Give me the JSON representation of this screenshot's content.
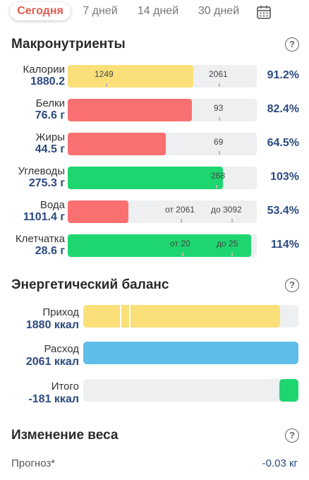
{
  "tabs": [
    {
      "label": "Сегодня",
      "active": true
    },
    {
      "label": "7 дней",
      "active": false
    },
    {
      "label": "14 дней",
      "active": false
    },
    {
      "label": "30 дней",
      "active": false
    }
  ],
  "icons": {
    "calendar": "calendar-icon",
    "help": "help-icon"
  },
  "macros": {
    "title": "Макронутриенты",
    "help": "?",
    "rows": [
      {
        "name": "Калории",
        "value": "1880.2",
        "percent": "91.2%",
        "color": "#fbe07a",
        "fill_fraction": 0.665,
        "marks": [
          "1249",
          "2061"
        ]
      },
      {
        "name": "Белки",
        "value": "76.6 г",
        "percent": "82.4%",
        "color": "#fa7070",
        "fill_fraction": 0.658,
        "marks": [
          "93"
        ]
      },
      {
        "name": "Жиры",
        "value": "44.5 г",
        "percent": "64.5%",
        "color": "#fa7070",
        "fill_fraction": 0.52,
        "marks": [
          "69"
        ]
      },
      {
        "name": "Углеводы",
        "value": "275.3 г",
        "percent": "103%",
        "color": "#1ed66f",
        "fill_fraction": 0.82,
        "marks": [
          "268"
        ]
      },
      {
        "name": "Вода",
        "value": "1101.4 г",
        "percent": "53.4%",
        "color": "#fa7070",
        "fill_fraction": 0.32,
        "marks": [
          "от 2061",
          "до 3092"
        ]
      },
      {
        "name": "Клетчатка",
        "value": "28.6 г",
        "percent": "114%",
        "color": "#1ed66f",
        "fill_fraction": 0.97,
        "marks": [
          "от 20",
          "до 25"
        ]
      }
    ]
  },
  "energy": {
    "title": "Энергетический баланс",
    "help": "?",
    "rows": [
      {
        "name": "Приход",
        "value": "1880 ккал",
        "color": "#fbe07a",
        "fill_fraction": 0.915
      },
      {
        "name": "Расход",
        "value": "2061 ккал",
        "color": "#5fbde9",
        "fill_fraction": 1.0
      },
      {
        "name": "Итого",
        "value": "-181 ккал",
        "color": "#1ed66f",
        "fill_fraction": 0.088
      }
    ]
  },
  "weight": {
    "title": "Изменение веса",
    "help": "?",
    "forecast_label": "Прогноз*",
    "forecast_value": "-0.03 кг"
  }
}
